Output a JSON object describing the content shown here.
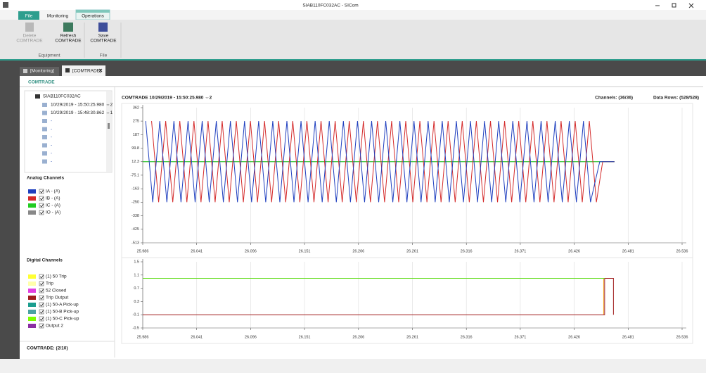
{
  "window": {
    "title": "SIAB110FC032AC - SICom"
  },
  "ribbon": {
    "tabs": [
      "File",
      "Monitoring",
      "Operations"
    ],
    "buttons": [
      [
        "Delete",
        "COMTRADE"
      ],
      [
        "Refresh",
        "COMTRADE"
      ],
      [
        "Save",
        "COMTRADE"
      ]
    ],
    "groups": [
      "Equipment",
      "File"
    ]
  },
  "doc_tabs": [
    "[Monitoring]",
    "[COMTRADE]"
  ],
  "panel": {
    "header": "COMTRADE",
    "tree": {
      "root": "SIAB110FC032AC",
      "items": [
        "10/29/2019 - 15:50:25.980 ⇔2",
        "10/29/2019 - 15:48:30.862 ⇔1",
        "-",
        "-",
        "-",
        "-",
        "-",
        "-"
      ]
    },
    "analog_title": "Analog Channels",
    "digital_title": "Digital Channels",
    "digital_channels": [
      {
        "name": "(1) 50 Trip",
        "color": "#ffff33"
      },
      {
        "name": "Trip",
        "color": "#ffffaa"
      },
      {
        "name": "52 Closed",
        "color": "#e040e0"
      },
      {
        "name": "Trip Output",
        "color": "#a01c1c"
      },
      {
        "name": "(1) 50-A Pick-up",
        "color": "#1b9e8f"
      },
      {
        "name": "(1) 50-B Pick-up",
        "color": "#4aa3a3"
      },
      {
        "name": "(1) 50-C Pick-up",
        "color": "#80ff00"
      },
      {
        "name": "Output 2",
        "color": "#8b2fa3"
      }
    ],
    "footer": "COMTRADE: (2/10)"
  },
  "plot_header": {
    "title": "COMTRADE 10/29/2019 - 15:50:25.980 ⇔2",
    "channels": "Channels: (36/36)",
    "rows": "Data Rows: (528/528)"
  },
  "chart_data": [
    {
      "type": "line",
      "grid": "x",
      "xlim": [
        25.986,
        26.536
      ],
      "xticks": [
        25.986,
        26.041,
        26.096,
        26.151,
        26.206,
        26.261,
        26.316,
        26.371,
        26.426,
        26.481,
        26.536
      ],
      "ylim": [
        -513,
        362
      ],
      "yticks": [
        362,
        275,
        187,
        99.8,
        12.3,
        -75.1,
        -163,
        -250,
        -338,
        -425,
        -513
      ],
      "series": [
        {
          "name": "IA - (A)",
          "color": "#1f3fbf",
          "x": [
            25.989,
            25.9962,
            26.0034,
            26.0106,
            26.0178,
            26.025,
            26.0322,
            26.0394,
            26.0466,
            26.0538,
            26.061,
            26.0682,
            26.0754,
            26.0826,
            26.0898,
            26.097,
            26.1042,
            26.1114,
            26.1186,
            26.1258,
            26.133,
            26.1402,
            26.1474,
            26.1546,
            26.1618,
            26.169,
            26.1762,
            26.1834,
            26.1906,
            26.1978,
            26.205,
            26.2122,
            26.2194,
            26.2266,
            26.2338,
            26.241,
            26.2482,
            26.2554,
            26.2626,
            26.2698,
            26.277,
            26.2842,
            26.2914,
            26.2986,
            26.3058,
            26.313,
            26.3202,
            26.3274,
            26.3346,
            26.3418,
            26.349,
            26.3562,
            26.3634,
            26.3706,
            26.3778,
            26.385,
            26.3922,
            26.3994,
            26.4066,
            26.4138,
            26.421,
            26.4282,
            26.4354,
            26.4426,
            26.452,
            26.467
          ],
          "values": [
            275,
            -250,
            275,
            -250,
            275,
            -250,
            275,
            -250,
            275,
            -250,
            275,
            -250,
            275,
            -250,
            275,
            -250,
            275,
            -250,
            275,
            -250,
            275,
            -250,
            275,
            -250,
            275,
            -250,
            275,
            -250,
            275,
            -250,
            275,
            -250,
            275,
            -250,
            275,
            -250,
            275,
            -250,
            275,
            -250,
            275,
            -250,
            275,
            -250,
            275,
            -250,
            275,
            -250,
            275,
            -250,
            275,
            -250,
            275,
            -250,
            275,
            -250,
            275,
            -250,
            275,
            -250,
            275,
            -250,
            275,
            -250,
            12.3,
            12.3
          ]
        },
        {
          "name": "IB - (A)",
          "color": "#d42a2a",
          "x": [
            25.995,
            26.0022,
            26.0094,
            26.0166,
            26.0238,
            26.031,
            26.0382,
            26.0454,
            26.0526,
            26.0598,
            26.067,
            26.0742,
            26.0814,
            26.0886,
            26.0958,
            26.103,
            26.1102,
            26.1174,
            26.1246,
            26.1318,
            26.139,
            26.1462,
            26.1534,
            26.1606,
            26.1678,
            26.175,
            26.1822,
            26.1894,
            26.1966,
            26.2038,
            26.211,
            26.2182,
            26.2254,
            26.2326,
            26.2398,
            26.247,
            26.2542,
            26.2614,
            26.2686,
            26.2758,
            26.283,
            26.2902,
            26.2974,
            26.3046,
            26.3118,
            26.319,
            26.3262,
            26.3334,
            26.3406,
            26.3478,
            26.355,
            26.3622,
            26.3694,
            26.3766,
            26.3838,
            26.391,
            26.3982,
            26.4054,
            26.4126,
            26.4198,
            26.427,
            26.4342,
            26.4414,
            26.4486,
            26.455,
            26.467
          ],
          "values": [
            275,
            -250,
            275,
            -250,
            275,
            -250,
            275,
            -250,
            275,
            -250,
            275,
            -250,
            275,
            -250,
            275,
            -250,
            275,
            -250,
            275,
            -250,
            275,
            -250,
            275,
            -250,
            275,
            -250,
            275,
            -250,
            275,
            -250,
            275,
            -250,
            275,
            -250,
            275,
            -250,
            275,
            -250,
            275,
            -250,
            275,
            -250,
            275,
            -250,
            275,
            -250,
            275,
            -250,
            275,
            -250,
            275,
            -250,
            275,
            -250,
            275,
            -250,
            275,
            -250,
            275,
            -250,
            275,
            -250,
            275,
            -250,
            12.3,
            12.3
          ]
        },
        {
          "name": "IC - (A)",
          "color": "#22cc22",
          "x": [
            25.986,
            26.467
          ],
          "values": [
            12.3,
            12.3
          ]
        },
        {
          "name": "IO - (A)",
          "color": "#888888",
          "x": [
            25.986,
            26.467
          ],
          "values": [
            12.3,
            12.3
          ]
        }
      ]
    },
    {
      "type": "line",
      "grid": "x",
      "xlim": [
        25.986,
        26.536
      ],
      "xticks": [
        25.986,
        26.041,
        26.096,
        26.151,
        26.206,
        26.261,
        26.316,
        26.371,
        26.426,
        26.481,
        26.536
      ],
      "ylim": [
        -0.5,
        1.5
      ],
      "yticks": [
        1.5,
        1.1,
        0.7,
        0.3,
        -0.1,
        -0.5
      ],
      "series": [
        {
          "name": "(1) 50-C Pick-up",
          "color": "#66dd22",
          "x": [
            25.986,
            26.457
          ],
          "values": [
            1,
            1
          ]
        },
        {
          "name": "Trip Output",
          "color": "#a01c1c",
          "x": [
            25.986,
            26.457,
            26.457,
            26.466,
            26.466
          ],
          "values": [
            -0.1,
            -0.1,
            1,
            1,
            -0.1
          ]
        },
        {
          "name": "Trip",
          "color": "#f0a020",
          "x": [
            26.456,
            26.456,
            26.459
          ],
          "values": [
            -0.1,
            1,
            1
          ]
        }
      ]
    }
  ]
}
